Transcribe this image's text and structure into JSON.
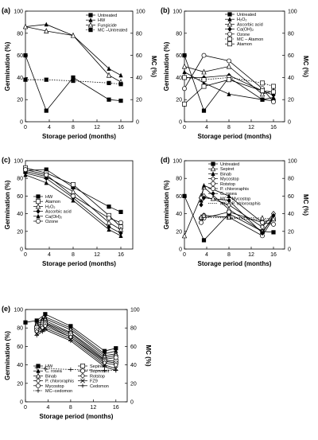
{
  "chart_data": [
    {
      "type": "line",
      "panel_label": "(a)",
      "xlabel": "Storage period (months)",
      "ylabel": "Germination (%)",
      "ylabel_right": "MC (%)",
      "xlim": [
        0,
        18
      ],
      "ylim": [
        0,
        100
      ],
      "xticks": [
        0,
        4,
        8,
        12,
        16
      ],
      "yticks": [
        0,
        20,
        40,
        60,
        80,
        100
      ],
      "legend_position": "top-right",
      "series": [
        {
          "name": "Untreated",
          "marker": "square-filled",
          "dash": "solid",
          "x": [
            0,
            3.5,
            8,
            14,
            16
          ],
          "y": [
            60,
            10,
            40,
            20,
            19
          ]
        },
        {
          "name": "HW",
          "marker": "triangle-filled",
          "dash": "solid",
          "x": [
            0,
            3.5,
            8,
            14,
            16
          ],
          "y": [
            86,
            88,
            78,
            48,
            42
          ]
        },
        {
          "name": "Fungicide",
          "marker": "triangle-open",
          "dash": "solid",
          "x": [
            0,
            3.5,
            8,
            14,
            16
          ],
          "y": [
            86,
            82,
            78,
            42,
            36
          ]
        },
        {
          "name": "MC –Untreated",
          "marker": "square-filled",
          "dash": "dotted",
          "x": [
            0,
            3.5,
            8,
            14,
            16
          ],
          "y": [
            38,
            38,
            37,
            35,
            34
          ]
        }
      ]
    },
    {
      "type": "line",
      "panel_label": "(b)",
      "xlabel": "Storage period (months)",
      "ylabel": "Germination (%)",
      "ylabel_right": "MC (%)",
      "xlim": [
        0,
        18
      ],
      "ylim": [
        0,
        100
      ],
      "xticks": [
        0,
        4,
        8,
        12,
        16
      ],
      "yticks": [
        0,
        20,
        40,
        60,
        80,
        100
      ],
      "legend_position": "top-right",
      "series": [
        {
          "name": "Untreated",
          "marker": "square-filled",
          "dash": "solid",
          "x": [
            0,
            3.5,
            8,
            14,
            16
          ],
          "y": [
            60,
            10,
            40,
            20,
            19
          ]
        },
        {
          "name": "H₂O₂",
          "marker": "triangle-filled",
          "dash": "solid",
          "x": [
            0,
            3.5,
            8,
            14,
            16
          ],
          "y": [
            45,
            35,
            25,
            20,
            22
          ]
        },
        {
          "name": "Ascorbic acid",
          "marker": "triangle-open",
          "dash": "solid",
          "x": [
            0,
            3.5,
            8,
            14,
            16
          ],
          "y": [
            50,
            45,
            50,
            25,
            28
          ]
        },
        {
          "name": "Ca(OH)₂",
          "marker": "diamond-filled",
          "dash": "solid",
          "x": [
            0,
            3.5,
            8,
            14,
            16
          ],
          "y": [
            40,
            40,
            42,
            28,
            24
          ]
        },
        {
          "name": "Ozone",
          "marker": "circle-open",
          "dash": "solid",
          "x": [
            0,
            3.5,
            8,
            14,
            16
          ],
          "y": [
            30,
            60,
            55,
            30,
            18
          ]
        },
        {
          "name": "MC – Atamon",
          "marker": "square-open",
          "dash": "dotted",
          "x": [
            0,
            3.5,
            8,
            14,
            16
          ],
          "y": [
            40,
            38,
            40,
            35,
            32
          ]
        },
        {
          "name": "Atamon",
          "marker": "square-open",
          "dash": "solid",
          "x": [
            0,
            3.5,
            8,
            14,
            16
          ],
          "y": [
            16,
            32,
            38,
            28,
            27
          ]
        }
      ]
    },
    {
      "type": "line",
      "panel_label": "(c)",
      "xlabel": "Storage period (months)",
      "ylabel": "Germination (%)",
      "xlim": [
        0,
        18
      ],
      "ylim": [
        0,
        100
      ],
      "xticks": [
        0,
        4,
        8,
        12,
        16
      ],
      "yticks": [
        0,
        20,
        40,
        60,
        80,
        100
      ],
      "legend_position": "bottom-left",
      "series": [
        {
          "name": "HW",
          "marker": "square-filled",
          "dash": "solid",
          "x": [
            0,
            3.5,
            8,
            14,
            16
          ],
          "y": [
            89,
            90,
            70,
            48,
            42
          ]
        },
        {
          "name": "Atamon",
          "marker": "square-open",
          "dash": "solid",
          "x": [
            0,
            3.5,
            8,
            14,
            16
          ],
          "y": [
            92,
            86,
            73,
            38,
            25
          ]
        },
        {
          "name": "H₂O₂",
          "marker": "triangle-open",
          "dash": "solid",
          "x": [
            0,
            3.5,
            8,
            14,
            16
          ],
          "y": [
            88,
            82,
            65,
            30,
            22
          ]
        },
        {
          "name": "Ascorbic acid",
          "marker": "diamond-filled",
          "dash": "solid",
          "x": [
            0,
            3.5,
            8,
            14,
            16
          ],
          "y": [
            86,
            80,
            58,
            25,
            18
          ]
        },
        {
          "name": "Ca(OH)₂",
          "marker": "triangle-filled",
          "dash": "solid",
          "x": [
            0,
            3.5,
            8,
            14,
            16
          ],
          "y": [
            84,
            75,
            55,
            22,
            15
          ]
        },
        {
          "name": "Ozone",
          "marker": "circle-open",
          "dash": "solid",
          "x": [
            0,
            3.5,
            8,
            14,
            16
          ],
          "y": [
            90,
            84,
            60,
            35,
            30
          ]
        }
      ]
    },
    {
      "type": "line",
      "panel_label": "(d)",
      "xlabel": "Storage period (months)",
      "ylabel": "Germination (%)",
      "ylabel_right": "MC (%)",
      "xlim": [
        0,
        18
      ],
      "ylim": [
        0,
        100
      ],
      "xticks": [
        0,
        4,
        8,
        12,
        16
      ],
      "yticks": [
        0,
        20,
        40,
        60,
        80,
        100
      ],
      "legend_position": "top-right",
      "series": [
        {
          "name": "Untreated",
          "marker": "square-filled",
          "dash": "solid",
          "x": [
            0,
            3.5,
            8,
            14,
            16
          ],
          "y": [
            60,
            10,
            40,
            20,
            19
          ]
        },
        {
          "name": "Sepiret",
          "marker": "triangle-open",
          "dash": "solid",
          "x": [
            0,
            3,
            3.5,
            8,
            14,
            16
          ],
          "y": [
            15,
            60,
            70,
            45,
            20,
            35
          ]
        },
        {
          "name": "Binab",
          "marker": "triangle-filled",
          "dash": "solid",
          "x": [
            3,
            3.5,
            8,
            14,
            16
          ],
          "y": [
            55,
            72,
            60,
            30,
            34
          ]
        },
        {
          "name": "Mycostop",
          "marker": "diamond-open",
          "dash": "solid",
          "x": [
            3,
            3.5,
            8,
            14,
            16
          ],
          "y": [
            58,
            60,
            50,
            25,
            40
          ]
        },
        {
          "name": "Rotstop",
          "marker": "circle-open",
          "dash": "solid",
          "x": [
            3,
            3.5,
            8,
            14,
            16
          ],
          "y": [
            30,
            35,
            42,
            30,
            28
          ]
        },
        {
          "name": "P. chlororaphis",
          "marker": "circle-open",
          "dash": "solid",
          "x": [
            3,
            3.5,
            8,
            14,
            16
          ],
          "y": [
            35,
            38,
            36,
            15,
            35
          ]
        },
        {
          "name": "C. rosea",
          "marker": "diamond-filled",
          "dash": "solid",
          "x": [
            3,
            3.5,
            8,
            14,
            16
          ],
          "y": [
            50,
            58,
            55,
            18,
            38
          ]
        },
        {
          "name": "MC – Mycostop",
          "marker": "triangle-open",
          "dash": "dotted",
          "x": [
            3,
            3.5,
            8,
            14,
            16
          ],
          "y": [
            36,
            38,
            36,
            35,
            34
          ]
        },
        {
          "name": "MC – P. chlororaphis",
          "marker": "none",
          "dash": "dotted",
          "x": [
            3,
            3.5,
            8,
            14,
            16
          ],
          "y": [
            35,
            36,
            35,
            33,
            32
          ]
        }
      ]
    },
    {
      "type": "line",
      "panel_label": "(e)",
      "xlabel": "Storage period (months)",
      "ylabel": "Germination (%)",
      "ylabel_right": "MC (%)",
      "xlim": [
        0,
        18
      ],
      "ylim": [
        0,
        100
      ],
      "xticks": [
        0,
        4,
        8,
        12,
        16
      ],
      "yticks": [
        0,
        20,
        40,
        60,
        80,
        100
      ],
      "legend_position": "bottom-left",
      "series": [
        {
          "name": "HW",
          "marker": "square-filled",
          "dash": "solid",
          "x": [
            0,
            2,
            3.5,
            8,
            14,
            16
          ],
          "y": [
            86,
            88,
            95,
            82,
            55,
            58
          ]
        },
        {
          "name": "C. rosea",
          "marker": "triangle-filled",
          "dash": "solid",
          "x": [
            2,
            3,
            3.5,
            8,
            14,
            16
          ],
          "y": [
            86,
            90,
            92,
            80,
            52,
            55
          ]
        },
        {
          "name": "Binab",
          "marker": "triangle-open",
          "dash": "solid",
          "x": [
            2,
            3,
            3.5,
            8,
            14,
            16
          ],
          "y": [
            84,
            88,
            90,
            78,
            50,
            52
          ]
        },
        {
          "name": "P. chlororaphis",
          "marker": "diamond-open",
          "dash": "solid",
          "x": [
            2,
            3,
            3.5,
            8,
            14,
            16
          ],
          "y": [
            82,
            86,
            88,
            75,
            48,
            50
          ]
        },
        {
          "name": "Mycostop",
          "marker": "circle-open",
          "dash": "solid",
          "x": [
            2,
            3,
            3.5,
            8,
            14,
            16
          ],
          "y": [
            80,
            84,
            86,
            74,
            46,
            48
          ]
        },
        {
          "name": "MC–cedomon",
          "marker": "plus",
          "dash": "dotted",
          "x": [
            2,
            3.5,
            8,
            14,
            16
          ],
          "y": [
            37,
            36,
            35,
            34,
            34
          ]
        },
        {
          "name": "Sepiret",
          "marker": "square-open",
          "dash": "solid",
          "x": [
            2,
            3,
            3.5,
            8,
            14,
            16
          ],
          "y": [
            80,
            82,
            85,
            72,
            45,
            44
          ]
        },
        {
          "name": "Supresivit",
          "marker": "circle-open",
          "dash": "solid",
          "x": [
            2,
            3,
            3.5,
            8,
            14,
            16
          ],
          "y": [
            78,
            82,
            84,
            70,
            44,
            42
          ]
        },
        {
          "name": "Rotstop",
          "marker": "diamond-open",
          "dash": "solid",
          "x": [
            2,
            3,
            3.5,
            8,
            14,
            16
          ],
          "y": [
            76,
            80,
            82,
            70,
            42,
            40
          ]
        },
        {
          "name": "FZ9",
          "marker": "x",
          "dash": "solid",
          "x": [
            2,
            3,
            3.5,
            8,
            14,
            16
          ],
          "y": [
            74,
            78,
            80,
            68,
            40,
            36
          ]
        },
        {
          "name": "Cedomon",
          "marker": "plus",
          "dash": "solid",
          "x": [
            2,
            3,
            3.5,
            8,
            14,
            16
          ],
          "y": [
            72,
            76,
            78,
            66,
            38,
            34
          ]
        }
      ]
    }
  ]
}
